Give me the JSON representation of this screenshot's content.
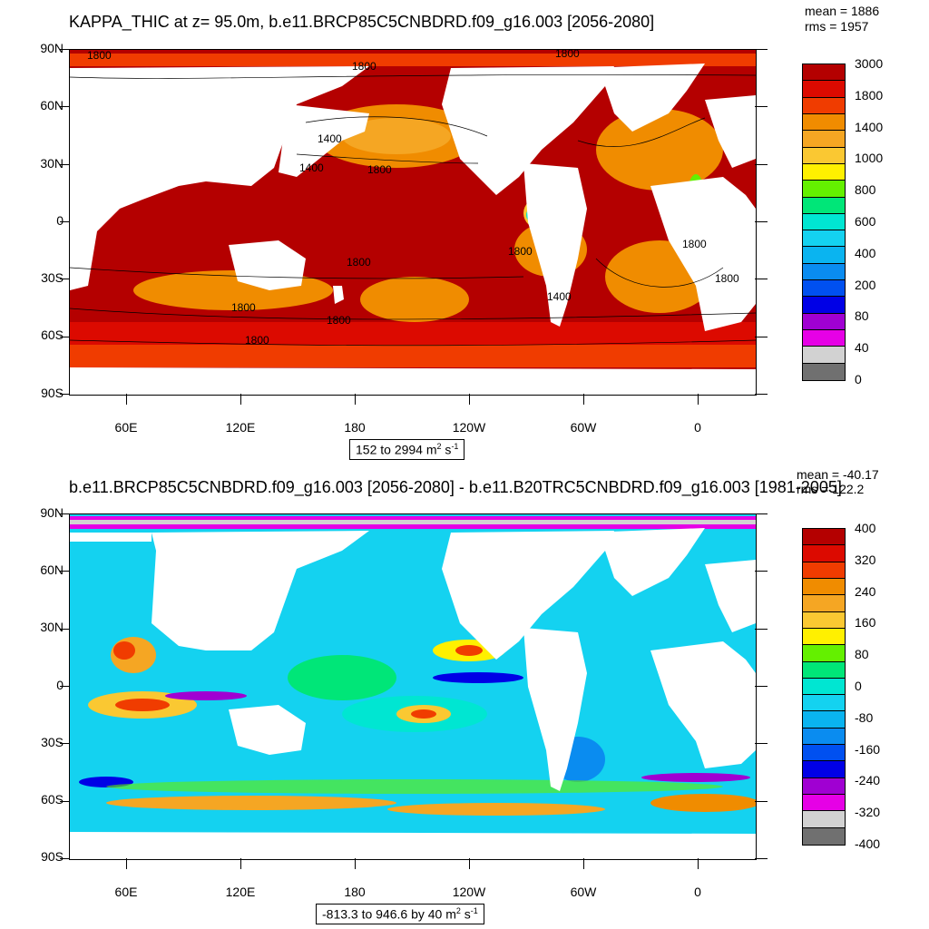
{
  "panel1": {
    "title": "KAPPA_THIC at z=  95.0m, b.e11.BRCP85C5CNBDRD.f09_g16.003 [2056-2080]",
    "mean": "mean = 1886",
    "rms": "rms = 1957",
    "range_text": "152 to 2994",
    "range_unit": "m",
    "colorbar_labels": [
      "3000",
      "1800",
      "1400",
      "1000",
      "800",
      "600",
      "400",
      "200",
      "80",
      "40",
      "0"
    ],
    "colorbar_colors": [
      "#b40000",
      "#dc0a00",
      "#f03c00",
      "#f08c00",
      "#f5a623",
      "#fac832",
      "#fff000",
      "#64f000",
      "#00e678",
      "#00e6d2",
      "#14d2f0",
      "#0ab4f0",
      "#0a8cf0",
      "#0050f0",
      "#0000e6",
      "#a000d2",
      "#e600e6",
      "#d2d2d2",
      "#707070"
    ],
    "contour_labels": [
      "1800",
      "1800",
      "1800",
      "1400",
      "1400",
      "1800",
      "1800",
      "1800",
      "1800",
      "1800",
      "1800",
      "1400",
      "1800",
      "1800"
    ]
  },
  "panel2": {
    "title": "b.e11.BRCP85C5CNBDRD.f09_g16.003 [2056-2080] - b.e11.B20TRC5CNBDRD.f09_g16.003 [1981-2005]",
    "mean": "mean = -40.17",
    "rms": "rms = 122.2",
    "range_text": "-813.3 to 946.6 by 40",
    "range_unit": "m",
    "colorbar_labels": [
      "400",
      "320",
      "240",
      "160",
      "80",
      "0",
      "-80",
      "-160",
      "-240",
      "-320",
      "-400"
    ],
    "colorbar_colors": [
      "#b40000",
      "#dc0a00",
      "#f03c00",
      "#f08c00",
      "#f5a623",
      "#fac832",
      "#fff000",
      "#64f000",
      "#00e678",
      "#00e6d2",
      "#14d2f0",
      "#0ab4f0",
      "#0a8cf0",
      "#0050f0",
      "#0000e6",
      "#a000d2",
      "#e600e6",
      "#d2d2d2",
      "#707070"
    ]
  },
  "axes": {
    "lat_labels": [
      "90N",
      "60N",
      "30N",
      "0",
      "30S",
      "60S",
      "90S"
    ],
    "lon_labels": [
      "60E",
      "120E",
      "180",
      "120W",
      "60W",
      "0"
    ]
  },
  "colors": {
    "land": "#ffffff",
    "frame": "#000000"
  }
}
